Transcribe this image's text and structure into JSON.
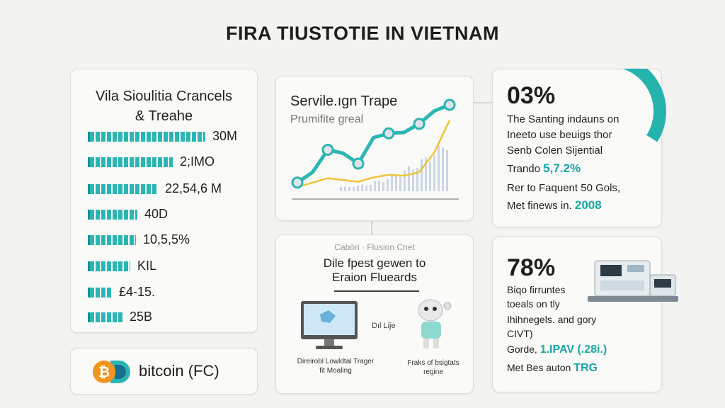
{
  "title": "FIRA TIUSTOTIE IN VIETNAM",
  "left_card": {
    "title_line1": "Vila Sioulitia Crancels",
    "title_line2": "& Treahe",
    "bars": [
      {
        "label": "30M",
        "fraction": 0.64
      },
      {
        "label": "2;IMO",
        "fraction": 0.46
      },
      {
        "label": "22,54,6 M",
        "fraction": 0.38
      },
      {
        "label": "40D",
        "fraction": 0.27
      },
      {
        "label": "10,5,5%",
        "fraction": 0.26
      },
      {
        "label": "KIL",
        "fraction": 0.23
      },
      {
        "label": "£4-15.",
        "fraction": 0.13
      },
      {
        "label": "25B",
        "fraction": 0.19
      }
    ]
  },
  "bitcoin": {
    "label": "bitcoin (FC)"
  },
  "chart": {
    "title": "Servile.ıgn Trape",
    "subtitle": "Prumifite greal",
    "colors": {
      "teal": "#2bb5b3",
      "yellow": "#f0c43a",
      "grey_bars": "#c9d6e6"
    }
  },
  "chart_data": {
    "type": "line",
    "title": "Servile.ıgn Trape",
    "subtitle": "Prumifite greal",
    "series": [
      {
        "values": [
          0.1,
          0.22,
          0.48,
          0.44,
          0.32,
          0.62,
          0.67,
          0.68,
          0.78,
          0.93,
          1.0
        ]
      },
      {
        "values": [
          0.05,
          0.1,
          0.15,
          0.13,
          0.11,
          0.16,
          0.19,
          0.18,
          0.22,
          0.45,
          0.82
        ]
      }
    ],
    "grid": false
  },
  "mid_card": {
    "top_label": "Cabōri · Flusion Cnet",
    "title_line1": "Dile fpest gewen to",
    "title_line2": "Eraion Flueards",
    "middle_label": "Dıl Lije",
    "caption1_line1": "Direirobl Lowldtal Trager",
    "caption1_line2": "fit Moaling",
    "caption2_line1": "Fraks of bsigtats",
    "caption2_line2": "regine"
  },
  "right_top": {
    "percent": "03%",
    "gauge_fraction": 0.34,
    "line1": "The Santing indauns on",
    "line2": "Ineeto use beuigs thor",
    "line3": "Senb Colen Sijential",
    "line4_prefix": "Trando",
    "line4_value": "5,7.2%",
    "line5": "Rer to Faquent 50 Gols,",
    "line6_prefix": "Met finews in.",
    "line6_value": "2008"
  },
  "right_bottom": {
    "percent": "78%",
    "line1": "Biqo firruntes",
    "line2": "toeals on tly",
    "line3": "Ihihnegels. and gory",
    "line4": "CIVT)",
    "line5_prefix": "Gorde,",
    "line5_value": "1.IPAV (.28i.)",
    "line6_prefix": "Met Bes auton",
    "line6_value": "TRG"
  }
}
